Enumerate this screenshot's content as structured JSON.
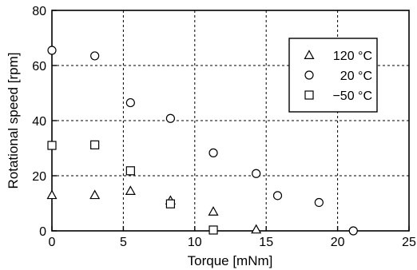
{
  "chart_data": {
    "type": "scatter",
    "xlabel": "Torque [mNm]",
    "ylabel": "Rotational speed [rpm]",
    "xlim": [
      0,
      25
    ],
    "ylim": [
      0,
      80
    ],
    "xticks": [
      0,
      5,
      10,
      15,
      20,
      25
    ],
    "yticks": [
      0,
      20,
      40,
      60,
      80
    ],
    "grid": true,
    "legend_position": "top-right",
    "series": [
      {
        "name": "120 °C",
        "marker": "triangle",
        "x": [
          0.0,
          3.0,
          5.5,
          8.3,
          11.3,
          14.3
        ],
        "y": [
          13.0,
          13.0,
          14.5,
          11.0,
          7.0,
          0.5
        ]
      },
      {
        "name": "20 °C",
        "marker": "circle",
        "x": [
          0.0,
          3.0,
          5.5,
          8.3,
          11.3,
          14.3,
          15.8,
          18.7,
          21.1
        ],
        "y": [
          65.5,
          63.5,
          46.5,
          40.8,
          28.3,
          20.8,
          12.8,
          10.3,
          0.0
        ]
      },
      {
        "name": "−50 °C",
        "marker": "square",
        "x": [
          0.0,
          3.0,
          5.5,
          8.3,
          11.3
        ],
        "y": [
          31.0,
          31.2,
          21.8,
          9.8,
          0.3
        ]
      }
    ]
  }
}
